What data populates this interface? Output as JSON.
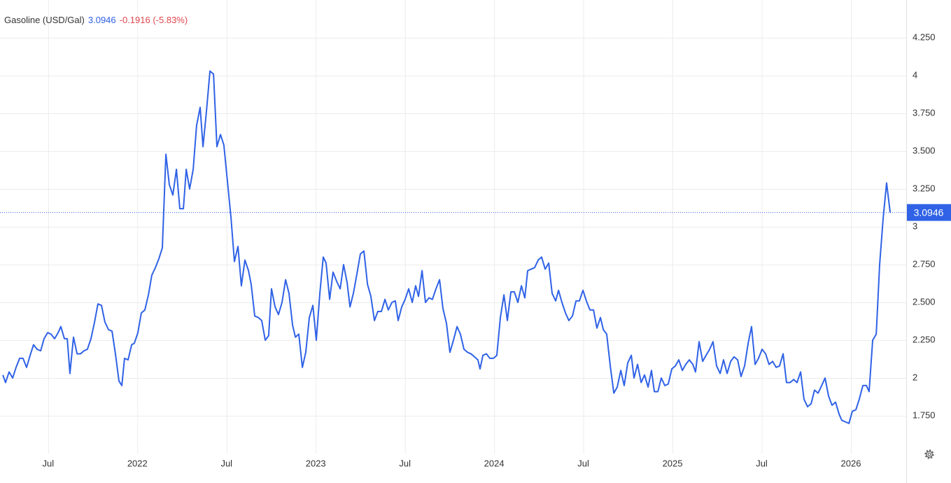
{
  "chart_data": {
    "type": "line",
    "change": "-0.1916 (-5.83%)",
    "change_color": "#e0474c",
    "xlim": [
      2021.23,
      2026.31
    ],
    "xticks": [
      {
        "value": 2021.5,
        "label": "Jul"
      },
      2022,
      {
        "value": 2022.5,
        "label": "Jul"
      },
      2023,
      {
        "value": 2023.5,
        "label": "Jul"
      },
      2024,
      {
        "value": 2024.5,
        "label": "Jul"
      },
      2025,
      {
        "value": 2025.5,
        "label": "Jul"
      },
      2026
    ],
    "ylim": [
      1.5,
      4.5
    ],
    "yticks": [
      {
        "value": 1.75,
        "label": "1.750"
      },
      2,
      {
        "value": 2.25,
        "label": "2.250"
      },
      {
        "value": 2.5,
        "label": "2.500"
      },
      {
        "value": 2.75,
        "label": "2.750"
      },
      3,
      {
        "value": 3.25,
        "label": "3.250"
      },
      {
        "value": 3.5,
        "label": "3.500"
      },
      {
        "value": 3.75,
        "label": "3.750"
      },
      4,
      {
        "value": 4.25,
        "label": "4.250"
      }
    ],
    "grid": true,
    "x": [
      2021.246,
      2021.261,
      2021.281,
      2021.301,
      2021.32,
      2021.34,
      2021.359,
      2021.379,
      2021.399,
      2021.418,
      2021.438,
      2021.458,
      2021.477,
      2021.497,
      2021.516,
      2021.536,
      2021.556,
      2021.571,
      2021.591,
      2021.607,
      2021.622,
      2021.642,
      2021.662,
      2021.681,
      2021.701,
      2021.72,
      2021.74,
      2021.76,
      2021.779,
      2021.799,
      2021.818,
      2021.838,
      2021.858,
      2021.877,
      2021.897,
      2021.913,
      2021.928,
      2021.948,
      2021.968,
      2021.983,
      2022.003,
      2022.022,
      2022.042,
      2022.062,
      2022.081,
      2022.101,
      2022.121,
      2022.14,
      2022.16,
      2022.179,
      2022.199,
      2022.219,
      2022.238,
      2022.258,
      2022.274,
      2022.293,
      2022.313,
      2022.332,
      2022.352,
      2022.368,
      2022.387,
      2022.407,
      2022.427,
      2022.446,
      2022.466,
      2022.485,
      2022.505,
      2022.525,
      2022.544,
      2022.564,
      2022.583,
      2022.603,
      2022.623,
      2022.638,
      2022.658,
      2022.678,
      2022.697,
      2022.717,
      2022.736,
      2022.752,
      2022.772,
      2022.791,
      2022.811,
      2022.831,
      2022.85,
      2022.87,
      2022.886,
      2022.905,
      2022.925,
      2022.944,
      2022.964,
      2022.984,
      2023.003,
      2023.023,
      2023.042,
      2023.058,
      2023.078,
      2023.097,
      2023.117,
      2023.137,
      2023.156,
      2023.176,
      2023.192,
      2023.211,
      2023.231,
      2023.25,
      2023.27,
      2023.29,
      2023.309,
      2023.329,
      2023.348,
      2023.368,
      2023.388,
      2023.407,
      2023.427,
      2023.446,
      2023.462,
      2023.482,
      2023.501,
      2023.521,
      2023.541,
      2023.56,
      2023.576,
      2023.596,
      2023.615,
      2023.635,
      2023.654,
      2023.674,
      2023.694,
      2023.713,
      2023.733,
      2023.752,
      2023.772,
      2023.792,
      2023.811,
      2023.831,
      2023.851,
      2023.87,
      2023.89,
      2023.909,
      2023.921,
      2023.937,
      2023.957,
      2023.976,
      2023.996,
      2024.015,
      2024.035,
      2024.055,
      2024.074,
      2024.094,
      2024.113,
      2024.133,
      2024.153,
      2024.172,
      2024.188,
      2024.208,
      2024.227,
      2024.247,
      2024.266,
      2024.286,
      2024.306,
      2024.325,
      2024.345,
      2024.361,
      2024.38,
      2024.4,
      2024.419,
      2024.439,
      2024.459,
      2024.478,
      2024.498,
      2024.517,
      2024.537,
      2024.557,
      2024.576,
      2024.596,
      2024.612,
      2024.631,
      2024.651,
      2024.671,
      2024.69,
      2024.71,
      2024.729,
      2024.749,
      2024.769,
      2024.784,
      2024.804,
      2024.824,
      2024.843,
      2024.863,
      2024.882,
      2024.898,
      2024.918,
      2024.937,
      2024.957,
      2024.976,
      2024.996,
      2025.016,
      2025.035,
      2025.055,
      2025.074,
      2025.094,
      2025.114,
      2025.129,
      2025.149,
      2025.169,
      2025.188,
      2025.208,
      2025.227,
      2025.247,
      2025.267,
      2025.286,
      2025.306,
      2025.326,
      2025.345,
      2025.365,
      2025.384,
      2025.404,
      2025.424,
      2025.443,
      2025.463,
      2025.482,
      2025.502,
      2025.522,
      2025.541,
      2025.561,
      2025.581,
      2025.6,
      2025.62,
      2025.639,
      2025.659,
      2025.679,
      2025.698,
      2025.718,
      2025.737,
      2025.757,
      2025.777,
      2025.796,
      2025.816,
      2025.836,
      2025.855,
      2025.875,
      2025.894,
      2025.914,
      2025.934,
      2025.949,
      2025.969,
      2025.989,
      2026.008,
      2026.028,
      2026.047,
      2026.067,
      2026.087,
      2026.102,
      2026.122,
      2026.142,
      2026.161,
      2026.181,
      2026.2,
      2026.22
    ],
    "series": [
      {
        "name": "Gasoline (USD/Gal)",
        "color": "#2f62e6",
        "values": [
          2.02,
          1.97,
          2.04,
          2.0,
          2.07,
          2.13,
          2.13,
          2.07,
          2.15,
          2.22,
          2.19,
          2.18,
          2.26,
          2.3,
          2.29,
          2.26,
          2.3,
          2.34,
          2.26,
          2.26,
          2.03,
          2.27,
          2.16,
          2.16,
          2.18,
          2.19,
          2.26,
          2.37,
          2.49,
          2.48,
          2.37,
          2.32,
          2.31,
          2.16,
          1.98,
          1.95,
          2.13,
          2.12,
          2.22,
          2.23,
          2.3,
          2.43,
          2.45,
          2.55,
          2.68,
          2.73,
          2.79,
          2.86,
          3.48,
          3.28,
          3.21,
          3.38,
          3.12,
          3.12,
          3.38,
          3.25,
          3.38,
          3.67,
          3.79,
          3.53,
          3.76,
          4.03,
          4.01,
          3.53,
          3.61,
          3.54,
          3.3,
          3.06,
          2.77,
          2.87,
          2.61,
          2.78,
          2.71,
          2.62,
          2.41,
          2.4,
          2.38,
          2.25,
          2.28,
          2.59,
          2.47,
          2.42,
          2.5,
          2.65,
          2.56,
          2.35,
          2.27,
          2.29,
          2.07,
          2.17,
          2.4,
          2.48,
          2.25,
          2.56,
          2.8,
          2.76,
          2.52,
          2.7,
          2.64,
          2.59,
          2.75,
          2.63,
          2.47,
          2.56,
          2.69,
          2.82,
          2.84,
          2.62,
          2.54,
          2.38,
          2.44,
          2.44,
          2.52,
          2.45,
          2.5,
          2.51,
          2.38,
          2.47,
          2.52,
          2.59,
          2.5,
          2.61,
          2.54,
          2.71,
          2.5,
          2.53,
          2.52,
          2.59,
          2.65,
          2.46,
          2.36,
          2.17,
          2.25,
          2.34,
          2.29,
          2.19,
          2.17,
          2.16,
          2.14,
          2.12,
          2.06,
          2.15,
          2.16,
          2.13,
          2.13,
          2.15,
          2.4,
          2.55,
          2.38,
          2.57,
          2.57,
          2.5,
          2.61,
          2.53,
          2.71,
          2.72,
          2.73,
          2.78,
          2.8,
          2.72,
          2.76,
          2.56,
          2.51,
          2.58,
          2.5,
          2.43,
          2.38,
          2.41,
          2.51,
          2.51,
          2.58,
          2.51,
          2.45,
          2.45,
          2.33,
          2.4,
          2.32,
          2.29,
          2.08,
          1.9,
          1.94,
          2.05,
          1.95,
          2.1,
          2.15,
          2.0,
          2.09,
          1.97,
          2.02,
          1.94,
          2.05,
          1.91,
          1.91,
          2.0,
          1.95,
          1.96,
          2.06,
          2.08,
          2.12,
          2.05,
          2.09,
          2.12,
          2.09,
          2.04,
          2.24,
          2.11,
          2.15,
          2.19,
          2.24,
          2.08,
          2.03,
          2.12,
          2.03,
          2.11,
          2.14,
          2.12,
          2.01,
          2.08,
          2.23,
          2.34,
          2.09,
          2.13,
          2.19,
          2.16,
          2.09,
          2.11,
          2.07,
          2.08,
          2.16,
          1.97,
          1.97,
          1.99,
          1.97,
          2.04,
          1.86,
          1.81,
          1.83,
          1.92,
          1.9,
          1.95,
          2.0,
          1.88,
          1.82,
          1.84,
          1.76,
          1.72,
          1.71,
          1.7,
          1.78,
          1.79,
          1.86,
          1.95,
          1.95,
          1.91,
          2.25,
          2.29,
          2.75,
          3.06,
          3.29,
          3.0946
        ]
      }
    ]
  }
}
